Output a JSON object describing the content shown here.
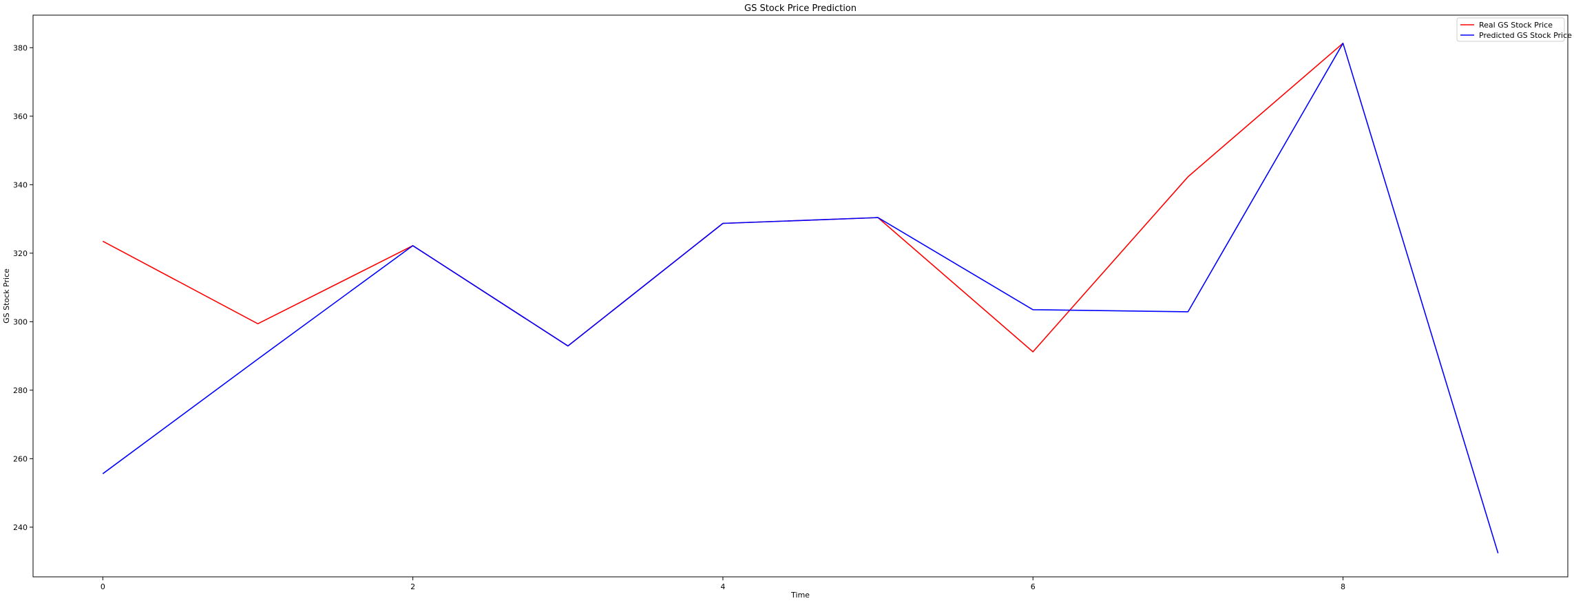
{
  "chart_data": {
    "type": "line",
    "title": "GS Stock Price Prediction",
    "xlabel": "Time",
    "ylabel": "GS Stock Price",
    "x": [
      0,
      1,
      2,
      3,
      4,
      5,
      6,
      7,
      8,
      9
    ],
    "xlim": [
      -0.45,
      9.45
    ],
    "ylim": [
      225.5,
      389.5
    ],
    "xticks": [
      0,
      2,
      4,
      6,
      8
    ],
    "yticks": [
      240,
      260,
      280,
      300,
      320,
      340,
      360,
      380
    ],
    "grid": false,
    "legend_position": "top-right",
    "series": [
      {
        "name": "Real GS Stock Price",
        "color": "#ff0000",
        "values": [
          323.5,
          299.4,
          322.2,
          292.9,
          328.7,
          330.4,
          291.2,
          342.3,
          381.3,
          null
        ]
      },
      {
        "name": "Predicted GS Stock Price",
        "color": "#0000ff",
        "values": [
          255.6,
          289.1,
          322.2,
          292.9,
          328.7,
          330.4,
          303.5,
          302.9,
          381.3,
          232.4
        ]
      }
    ]
  }
}
